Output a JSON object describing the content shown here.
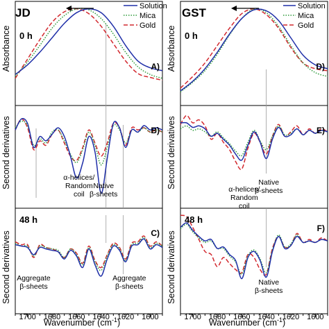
{
  "legend": [
    {
      "label": "Solution",
      "color": "#1f2fa8",
      "dash": ""
    },
    {
      "label": "Mica",
      "color": "#2e9a3a",
      "dash": "1.5,2"
    },
    {
      "label": "Gold",
      "color": "#d2282e",
      "dash": "6,3"
    }
  ],
  "ylabels": {
    "absorbance": "Absorbance",
    "second": "Second derivatives"
  },
  "xlabel": "Wavenumber (cm",
  "xlabel_sup": "-1",
  "xlabel_end": ")",
  "ticks": [
    "1700",
    "1680",
    "1660",
    "1640",
    "1620",
    "1600"
  ],
  "chart_data": [
    {
      "type": "line",
      "protein": "JD",
      "time": "0 h",
      "panel": "A)",
      "ylabel": "Absorbance",
      "xlim": [
        1710,
        1590
      ],
      "series": [
        {
          "name": "Solution",
          "x": [
            1710,
            1700,
            1690,
            1680,
            1670,
            1660,
            1650,
            1640,
            1630,
            1620,
            1610,
            1600,
            1590
          ],
          "y": [
            0.32,
            0.42,
            0.55,
            0.7,
            0.85,
            0.96,
            1.0,
            0.96,
            0.82,
            0.62,
            0.46,
            0.39,
            0.36
          ]
        },
        {
          "name": "Mica",
          "x": [
            1710,
            1700,
            1690,
            1680,
            1670,
            1660,
            1650,
            1640,
            1630,
            1620,
            1610,
            1600,
            1590
          ],
          "y": [
            0.3,
            0.45,
            0.62,
            0.8,
            0.93,
            1.0,
            0.99,
            0.9,
            0.74,
            0.55,
            0.4,
            0.32,
            0.28
          ]
        },
        {
          "name": "Gold",
          "x": [
            1710,
            1700,
            1690,
            1680,
            1670,
            1660,
            1650,
            1640,
            1630,
            1620,
            1610,
            1600,
            1590
          ],
          "y": [
            0.28,
            0.48,
            0.68,
            0.86,
            0.97,
            1.0,
            0.95,
            0.82,
            0.64,
            0.46,
            0.33,
            0.29,
            0.26
          ]
        }
      ]
    },
    {
      "type": "line",
      "protein": "JD",
      "panel": "B)",
      "ylabel": "Second derivatives",
      "xlim": [
        1710,
        1590
      ],
      "annotations": [
        {
          "text": "α-helices/",
          "x": 1658,
          "line": 0
        },
        {
          "text": "Random",
          "x": 1658,
          "line": 1
        },
        {
          "text": "coil",
          "x": 1658,
          "line": 2
        },
        {
          "text": "Native",
          "x": 1638,
          "line": 0,
          "lane": "b"
        },
        {
          "text": "β-sheets",
          "x": 1638,
          "line": 1,
          "lane": "b"
        }
      ],
      "series": [
        {
          "name": "Solution",
          "x": [
            1710,
            1705,
            1700,
            1695,
            1690,
            1685,
            1680,
            1675,
            1670,
            1665,
            1660,
            1655,
            1650,
            1645,
            1640,
            1635,
            1630,
            1625,
            1620,
            1615,
            1610,
            1605,
            1600,
            1595,
            1590
          ],
          "y": [
            0.05,
            0.3,
            0.2,
            -0.35,
            -0.1,
            -0.2,
            -0.05,
            0.1,
            -0.1,
            -0.55,
            -1.05,
            -0.7,
            -0.1,
            -0.45,
            -1.4,
            -0.6,
            0.2,
            0.1,
            -0.35,
            0.05,
            0.0,
            0.15,
            0.05,
            0.1,
            0.05
          ]
        },
        {
          "name": "Mica",
          "x": [
            1710,
            1705,
            1700,
            1695,
            1690,
            1685,
            1680,
            1675,
            1670,
            1665,
            1660,
            1655,
            1650,
            1645,
            1640,
            1635,
            1630,
            1625,
            1620,
            1615,
            1610,
            1605,
            1600,
            1595,
            1590
          ],
          "y": [
            0.1,
            0.25,
            0.15,
            -0.3,
            -0.15,
            -0.25,
            0.0,
            0.05,
            -0.2,
            -0.5,
            -0.7,
            -0.4,
            0.0,
            -0.3,
            -0.75,
            -0.35,
            0.15,
            0.05,
            -0.25,
            0.05,
            0.0,
            0.1,
            0.0,
            0.05,
            0.0
          ]
        },
        {
          "name": "Gold",
          "x": [
            1710,
            1705,
            1700,
            1695,
            1690,
            1685,
            1680,
            1675,
            1670,
            1665,
            1660,
            1655,
            1650,
            1645,
            1640,
            1635,
            1630,
            1625,
            1620,
            1615,
            1610,
            1605,
            1600,
            1595,
            1590
          ],
          "y": [
            0.05,
            0.3,
            0.1,
            -0.4,
            -0.2,
            -0.3,
            -0.05,
            0.05,
            -0.25,
            -0.55,
            -0.65,
            -0.35,
            0.05,
            -0.25,
            -0.55,
            -0.25,
            0.2,
            0.1,
            -0.3,
            0.1,
            0.05,
            0.1,
            0.0,
            0.05,
            0.0
          ]
        }
      ]
    },
    {
      "type": "line",
      "protein": "JD",
      "time": "48 h",
      "panel": "C)",
      "ylabel": "Second derivatives",
      "xlim": [
        1710,
        1590
      ],
      "annotations": [
        {
          "text": "Aggregate",
          "x": 1695,
          "line": 0
        },
        {
          "text": "β-sheets",
          "x": 1695,
          "line": 1
        },
        {
          "text": "Aggregate",
          "x": 1617,
          "line": 0
        },
        {
          "text": "β-sheets",
          "x": 1617,
          "line": 1
        }
      ],
      "series": [
        {
          "name": "Solution",
          "x": [
            1710,
            1705,
            1700,
            1695,
            1690,
            1685,
            1680,
            1675,
            1670,
            1665,
            1660,
            1655,
            1650,
            1645,
            1640,
            1635,
            1630,
            1625,
            1620,
            1615,
            1610,
            1605,
            1600,
            1595,
            1590
          ],
          "y": [
            0.1,
            0.05,
            0.0,
            -0.25,
            0.0,
            -0.05,
            -0.1,
            -0.15,
            -0.4,
            -0.1,
            -0.3,
            -0.7,
            -0.05,
            -0.6,
            -1.0,
            -0.4,
            0.05,
            -0.1,
            -0.5,
            0.05,
            0.1,
            0.3,
            -0.05,
            0.1,
            0.0
          ]
        },
        {
          "name": "Mica",
          "x": [
            1710,
            1705,
            1700,
            1695,
            1690,
            1685,
            1680,
            1675,
            1670,
            1665,
            1660,
            1655,
            1650,
            1645,
            1640,
            1635,
            1630,
            1625,
            1620,
            1615,
            1610,
            1605,
            1600,
            1595,
            1590
          ],
          "y": [
            0.15,
            0.05,
            0.05,
            -0.3,
            0.05,
            0.0,
            -0.05,
            -0.1,
            -0.35,
            -0.05,
            -0.25,
            -0.6,
            0.0,
            -0.5,
            -0.8,
            -0.3,
            0.1,
            -0.05,
            -0.45,
            0.1,
            0.15,
            0.35,
            0.0,
            0.15,
            0.05
          ]
        },
        {
          "name": "Gold",
          "x": [
            1710,
            1705,
            1700,
            1695,
            1690,
            1685,
            1680,
            1675,
            1670,
            1665,
            1660,
            1655,
            1650,
            1645,
            1640,
            1635,
            1630,
            1625,
            1620,
            1615,
            1610,
            1605,
            1600,
            1595,
            1590
          ],
          "y": [
            0.2,
            0.1,
            0.1,
            -0.35,
            0.1,
            0.0,
            -0.05,
            -0.15,
            -0.35,
            -0.05,
            -0.2,
            -0.55,
            0.05,
            -0.45,
            -0.7,
            -0.25,
            0.15,
            0.0,
            -0.4,
            0.15,
            0.2,
            0.4,
            0.05,
            0.2,
            0.05
          ]
        }
      ]
    },
    {
      "type": "line",
      "protein": "GST",
      "time": "0 h",
      "panel": "D)",
      "ylabel": "Absorbance",
      "xlim": [
        1710,
        1590
      ],
      "series": [
        {
          "name": "Solution",
          "x": [
            1710,
            1700,
            1690,
            1680,
            1670,
            1660,
            1650,
            1640,
            1630,
            1620,
            1610,
            1600,
            1590
          ],
          "y": [
            0.15,
            0.25,
            0.38,
            0.55,
            0.74,
            0.9,
            0.99,
            0.98,
            0.88,
            0.7,
            0.52,
            0.42,
            0.38
          ]
        },
        {
          "name": "Mica",
          "x": [
            1710,
            1700,
            1690,
            1680,
            1670,
            1660,
            1650,
            1640,
            1630,
            1620,
            1610,
            1600,
            1590
          ],
          "y": [
            0.14,
            0.24,
            0.36,
            0.53,
            0.73,
            0.9,
            1.0,
            0.96,
            0.82,
            0.62,
            0.44,
            0.34,
            0.3
          ]
        },
        {
          "name": "Gold",
          "x": [
            1710,
            1700,
            1690,
            1680,
            1670,
            1660,
            1650,
            1640,
            1630,
            1620,
            1610,
            1600,
            1590
          ],
          "y": [
            0.18,
            0.3,
            0.44,
            0.62,
            0.8,
            0.95,
            1.0,
            0.94,
            0.8,
            0.6,
            0.44,
            0.38,
            0.36
          ]
        }
      ]
    },
    {
      "type": "line",
      "protein": "GST",
      "panel": "E)",
      "ylabel": "Second derivatives",
      "xlim": [
        1710,
        1590
      ],
      "annotations": [
        {
          "text": "α-helices/",
          "x": 1658,
          "line": 0
        },
        {
          "text": "Random",
          "x": 1658,
          "line": 1
        },
        {
          "text": "coil",
          "x": 1658,
          "line": 2
        },
        {
          "text": "Native",
          "x": 1638,
          "line": 0,
          "lane": "t"
        },
        {
          "text": "β-sheets",
          "x": 1638,
          "line": 1,
          "lane": "t"
        }
      ],
      "series": [
        {
          "name": "Solution",
          "x": [
            1710,
            1705,
            1700,
            1695,
            1690,
            1685,
            1680,
            1675,
            1670,
            1665,
            1660,
            1655,
            1650,
            1645,
            1640,
            1635,
            1630,
            1625,
            1620,
            1615,
            1610,
            1605,
            1600,
            1595,
            1590
          ],
          "y": [
            0.35,
            0.35,
            0.2,
            0.25,
            0.15,
            -0.1,
            0.0,
            -0.2,
            -0.4,
            -0.7,
            -0.9,
            -0.4,
            0.05,
            -0.3,
            -0.85,
            -0.2,
            0.2,
            -0.1,
            -0.05,
            0.15,
            -0.05,
            0.1,
            0.0,
            0.1,
            0.05
          ]
        },
        {
          "name": "Mica",
          "x": [
            1710,
            1705,
            1700,
            1695,
            1690,
            1685,
            1680,
            1675,
            1670,
            1665,
            1660,
            1655,
            1650,
            1645,
            1640,
            1635,
            1630,
            1625,
            1620,
            1615,
            1610,
            1605,
            1600,
            1595,
            1590
          ],
          "y": [
            0.15,
            0.25,
            0.1,
            0.15,
            0.05,
            -0.1,
            0.05,
            -0.15,
            -0.35,
            -0.6,
            -0.75,
            -0.3,
            0.1,
            -0.25,
            -0.55,
            -0.1,
            0.25,
            -0.05,
            0.0,
            0.15,
            -0.05,
            0.1,
            0.0,
            0.1,
            0.05
          ]
        },
        {
          "name": "Gold",
          "x": [
            1710,
            1705,
            1700,
            1695,
            1690,
            1685,
            1680,
            1675,
            1670,
            1665,
            1660,
            1655,
            1650,
            1645,
            1640,
            1635,
            1630,
            1625,
            1620,
            1615,
            1610,
            1605,
            1600,
            1595,
            1590
          ],
          "y": [
            0.3,
            0.6,
            0.35,
            0.45,
            0.25,
            -0.2,
            0.0,
            -0.3,
            -0.55,
            -0.95,
            -1.2,
            -0.5,
            0.0,
            -0.3,
            -0.7,
            -0.1,
            0.3,
            -0.1,
            0.05,
            0.25,
            -0.05,
            0.15,
            0.0,
            0.15,
            0.05
          ]
        }
      ]
    },
    {
      "type": "line",
      "protein": "GST",
      "time": "48 h",
      "panel": "F)",
      "ylabel": "Second derivatives",
      "xlim": [
        1710,
        1590
      ],
      "annotations": [
        {
          "text": "Native",
          "x": 1638,
          "line": 0
        },
        {
          "text": "β-sheets",
          "x": 1638,
          "line": 1
        }
      ],
      "series": [
        {
          "name": "Solution",
          "x": [
            1710,
            1705,
            1700,
            1695,
            1690,
            1685,
            1680,
            1675,
            1670,
            1665,
            1660,
            1655,
            1650,
            1645,
            1640,
            1635,
            1630,
            1625,
            1620,
            1615,
            1610,
            1605,
            1600,
            1595,
            1590
          ],
          "y": [
            0.6,
            0.75,
            0.5,
            0.3,
            0.15,
            0.2,
            -0.1,
            -0.05,
            -0.3,
            -0.5,
            -1.1,
            -0.4,
            -0.2,
            -0.5,
            -1.05,
            -0.2,
            0.3,
            -0.1,
            0.0,
            0.3,
            0.1,
            0.15,
            0.1,
            0.2,
            0.15
          ]
        },
        {
          "name": "Mica",
          "x": [
            1710,
            1705,
            1700,
            1695,
            1690,
            1685,
            1680,
            1675,
            1670,
            1665,
            1660,
            1655,
            1650,
            1645,
            1640,
            1635,
            1630,
            1625,
            1620,
            1615,
            1610,
            1605,
            1600,
            1595,
            1590
          ],
          "y": [
            0.55,
            0.7,
            0.45,
            0.25,
            0.1,
            0.15,
            -0.1,
            -0.1,
            -0.35,
            -0.55,
            -0.95,
            -0.35,
            -0.15,
            -0.45,
            -0.9,
            -0.15,
            0.35,
            -0.05,
            0.05,
            0.35,
            0.1,
            0.15,
            0.1,
            0.2,
            0.15
          ]
        },
        {
          "name": "Gold",
          "x": [
            1710,
            1705,
            1700,
            1695,
            1690,
            1685,
            1680,
            1675,
            1670,
            1665,
            1660,
            1655,
            1650,
            1645,
            1640,
            1635,
            1630,
            1625,
            1620,
            1615,
            1610,
            1605,
            1600,
            1595,
            1590
          ],
          "y": [
            1.0,
            0.95,
            0.6,
            0.2,
            -0.2,
            -0.3,
            -0.7,
            -0.4,
            -0.6,
            -0.8,
            -0.9,
            -0.3,
            -0.4,
            -0.8,
            -0.95,
            -0.1,
            0.3,
            -0.05,
            0.0,
            0.4,
            0.1,
            0.2,
            0.1,
            0.25,
            0.15
          ]
        }
      ]
    }
  ]
}
